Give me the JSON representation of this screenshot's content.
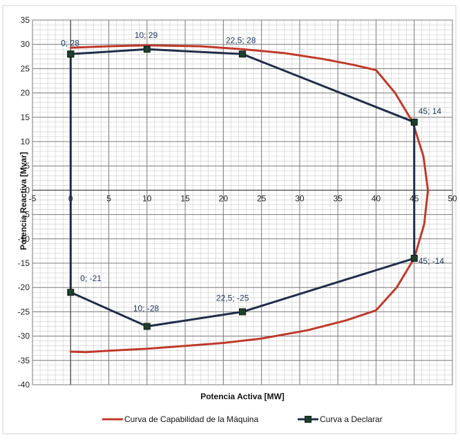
{
  "chart_data": {
    "type": "line",
    "title": "",
    "xlabel": "Potencia Activa [MW]",
    "ylabel": "Potencia Reactiva [Mvar]",
    "xlim": [
      -5,
      50
    ],
    "ylim": [
      -40,
      35
    ],
    "x_ticks": [
      -5,
      0,
      5,
      10,
      15,
      20,
      25,
      30,
      35,
      40,
      45,
      50
    ],
    "y_ticks": [
      35,
      30,
      25,
      20,
      15,
      10,
      5,
      0,
      -5,
      -10,
      -15,
      -20,
      -25,
      -30,
      -35,
      -40
    ],
    "minor_x_step": 1,
    "minor_y_step": 1,
    "grid": true,
    "legend_position": "bottom",
    "series": [
      {
        "name": "Curva de Capabilidad de la Máquina",
        "color": "#c0392b",
        "marker": "none",
        "points": [
          [
            0,
            29.3
          ],
          [
            5,
            29.6
          ],
          [
            10,
            29.8
          ],
          [
            17,
            29.6
          ],
          [
            22.5,
            29
          ],
          [
            28,
            28.2
          ],
          [
            33,
            27
          ],
          [
            37,
            25.8
          ],
          [
            40,
            24.7
          ],
          [
            42.5,
            20
          ],
          [
            44.8,
            14
          ],
          [
            46.2,
            7
          ],
          [
            46.8,
            0
          ],
          [
            46.3,
            -7
          ],
          [
            45,
            -14
          ],
          [
            42.7,
            -20
          ],
          [
            40,
            -24.7
          ],
          [
            36,
            -26.8
          ],
          [
            31,
            -28.8
          ],
          [
            25,
            -30.5
          ],
          [
            20,
            -31.4
          ],
          [
            15,
            -32
          ],
          [
            10,
            -32.6
          ],
          [
            5,
            -33
          ],
          [
            2,
            -33.3
          ],
          [
            0,
            -33.2
          ]
        ]
      },
      {
        "name": "Curva a Declarar",
        "color": "#1f2d4a",
        "marker": "square",
        "points": [
          [
            0,
            28
          ],
          [
            10,
            29
          ],
          [
            22.5,
            28
          ],
          [
            45,
            14
          ],
          [
            45,
            -14
          ],
          [
            22.5,
            -25
          ],
          [
            10,
            -28
          ],
          [
            0,
            -21
          ],
          [
            0,
            28
          ]
        ]
      }
    ],
    "annotations": [
      {
        "text": "0; 28",
        "x": 0,
        "y": 28
      },
      {
        "text": "10; 29",
        "x": 10,
        "y": 29
      },
      {
        "text": "22,5; 28",
        "x": 22.5,
        "y": 28
      },
      {
        "text": "45; 14",
        "x": 45,
        "y": 14
      },
      {
        "text": "45; -14",
        "x": 45,
        "y": -14
      },
      {
        "text": "22,5; -25",
        "x": 22.5,
        "y": -25
      },
      {
        "text": "10; -28",
        "x": 10,
        "y": -28
      },
      {
        "text": "0; -21",
        "x": 0,
        "y": -21
      }
    ]
  }
}
